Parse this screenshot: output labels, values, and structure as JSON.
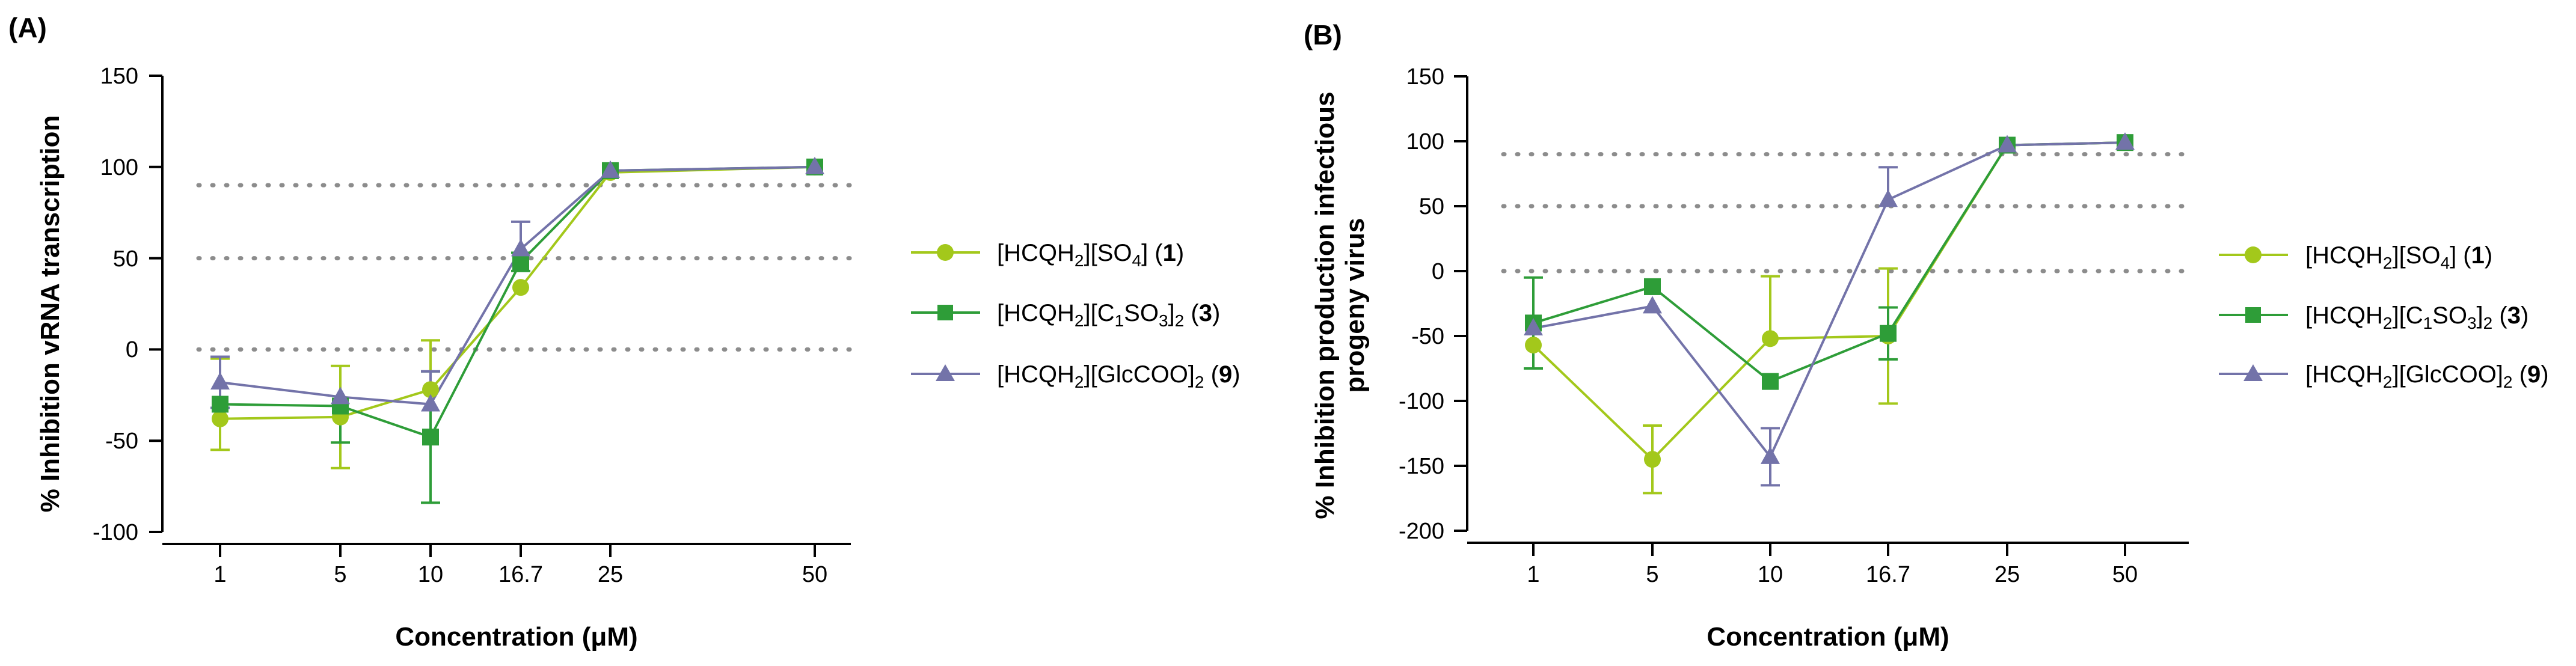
{
  "colors": {
    "s1": "#a3c81b",
    "s3": "#2e9d38",
    "s9": "#7373a9",
    "reference": "#8c8c8c"
  },
  "panels": [
    {
      "label": "(A)",
      "ylabel": "% Inhibition vRNA transcription",
      "xlabel": "Concentration (μM)",
      "yticks": [
        "150",
        "100",
        "50",
        "0",
        "-50",
        "-100"
      ]
    },
    {
      "label": "(B)",
      "ylabel_line1": "% Inhibition production infectious",
      "ylabel_line2": "progeny virus",
      "xlabel": "Concentration (μM)",
      "yticks": [
        "150",
        "100",
        "50",
        "0",
        "-50",
        "-100",
        "-150",
        "-200"
      ]
    }
  ],
  "legend": {
    "s1": {
      "pre": "[HCQH",
      "sub1": "2",
      "mid": "][SO",
      "sub2": "4",
      "post": "] (",
      "num": "1",
      "end": ")"
    },
    "s3": {
      "pre": "[HCQH",
      "sub1": "2",
      "mid1": "][C",
      "sub2": "1",
      "mid2": "SO",
      "sub3": "3",
      "mid3": "]",
      "sub4": "2",
      "post": " (",
      "num": "3",
      "end": ")"
    },
    "s9": {
      "pre": "[HCQH",
      "sub1": "2",
      "mid": "][GlcCOO]",
      "sub2": "2",
      "post": " (",
      "num": "9",
      "end": ")"
    }
  },
  "chart_data": [
    {
      "type": "line",
      "title": "(A)",
      "xlabel": "Concentration (μM)",
      "ylabel": "% Inhibition vRNA transcription",
      "categories": [
        "1",
        "5",
        "10",
        "16.7",
        "25",
        "50"
      ],
      "ylim": [
        -100,
        150
      ],
      "reference_lines": [
        90,
        50,
        0
      ],
      "series": [
        {
          "key": "s1",
          "name": "[HCQH2][SO4] (1)",
          "marker": "circle",
          "values": [
            -38,
            -37,
            -22,
            34,
            97,
            100
          ],
          "err_lo": [
            17,
            28,
            0,
            0,
            0,
            0
          ],
          "err_hi": [
            33,
            28,
            27,
            0,
            0,
            0
          ]
        },
        {
          "key": "s3",
          "name": "[HCQH2][C1SO3]2 (3)",
          "marker": "square",
          "values": [
            -30,
            -31,
            -48,
            48,
            98,
            100
          ],
          "err_lo": [
            0,
            20,
            36,
            5,
            0,
            0
          ],
          "err_hi": [
            0,
            0,
            36,
            5,
            0,
            0
          ]
        },
        {
          "key": "s9",
          "name": "[HCQH2][GlcCOO]2 (9)",
          "marker": "triangle",
          "values": [
            -18,
            -26,
            -30,
            55,
            98,
            100
          ],
          "err_lo": [
            14,
            0,
            0,
            0,
            0,
            0
          ],
          "err_hi": [
            14,
            0,
            18,
            15,
            0,
            0
          ]
        }
      ]
    },
    {
      "type": "line",
      "title": "(B)",
      "xlabel": "Concentration (μM)",
      "ylabel": "% Inhibition production infectious progeny virus",
      "categories": [
        "1",
        "5",
        "10",
        "16.7",
        "25",
        "50"
      ],
      "ylim": [
        -200,
        150
      ],
      "reference_lines": [
        90,
        50,
        0
      ],
      "series": [
        {
          "key": "s1",
          "name": "[HCQH2][SO4] (1)",
          "marker": "circle",
          "values": [
            -57,
            -145,
            -52,
            -50,
            97,
            99
          ],
          "err_lo": [
            0,
            26,
            0,
            52,
            0,
            0
          ],
          "err_hi": [
            0,
            26,
            48,
            52,
            0,
            0
          ]
        },
        {
          "key": "s3",
          "name": "[HCQH2][C1SO3]2 (3)",
          "marker": "square",
          "values": [
            -40,
            -12,
            -85,
            -48,
            97,
            99
          ],
          "err_lo": [
            35,
            0,
            0,
            20,
            0,
            0
          ],
          "err_hi": [
            35,
            0,
            0,
            20,
            0,
            0
          ]
        },
        {
          "key": "s9",
          "name": "[HCQH2][GlcCOO]2 (9)",
          "marker": "triangle",
          "values": [
            -44,
            -27,
            -143,
            55,
            97,
            99
          ],
          "err_lo": [
            0,
            0,
            22,
            0,
            0,
            0
          ],
          "err_hi": [
            0,
            0,
            22,
            25,
            0,
            0
          ]
        }
      ]
    }
  ]
}
